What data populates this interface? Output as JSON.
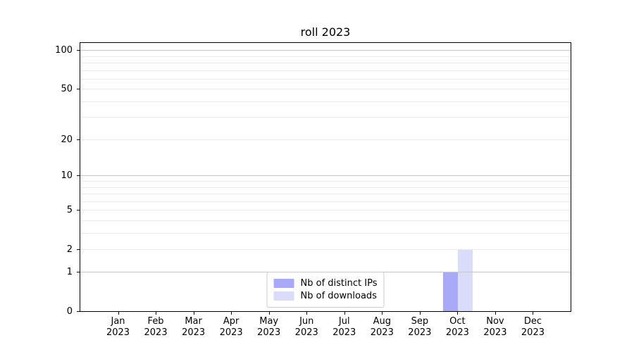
{
  "chart_data": {
    "type": "bar",
    "title": "roll 2023",
    "categories": [
      "Jan 2023",
      "Feb 2023",
      "Mar 2023",
      "Apr 2023",
      "May 2023",
      "Jun 2023",
      "Jul 2023",
      "Aug 2023",
      "Sep 2023",
      "Oct 2023",
      "Nov 2023",
      "Dec 2023"
    ],
    "month_labels": [
      "Jan",
      "Feb",
      "Mar",
      "Apr",
      "May",
      "Jun",
      "Jul",
      "Aug",
      "Sep",
      "Oct",
      "Nov",
      "Dec"
    ],
    "year": "2023",
    "series": [
      {
        "name": "Nb of distinct IPs",
        "color": "#a9a9f7",
        "values": [
          0,
          0,
          0,
          0,
          0,
          0,
          0,
          0,
          0,
          1,
          0,
          0
        ]
      },
      {
        "name": "Nb of downloads",
        "color": "#dbdbfa",
        "values": [
          0,
          0,
          0,
          0,
          0,
          0,
          0,
          0,
          0,
          2,
          0,
          0
        ]
      }
    ],
    "xlabel": "",
    "ylabel": "",
    "y_scale": "log1p",
    "ylim": [
      0,
      114
    ],
    "y_ticks": [
      0,
      1,
      2,
      5,
      10,
      20,
      50,
      100
    ],
    "y_major_gridlines": [
      1,
      10,
      100
    ],
    "y_minor_gridlines": [
      2,
      3,
      4,
      5,
      6,
      7,
      8,
      9,
      20,
      30,
      40,
      50,
      60,
      70,
      80,
      90
    ],
    "grid": "on",
    "legend_position": "lower center",
    "colors": {
      "spine": "#000000",
      "major_grid": "#c6c6c6",
      "minor_grid": "#ebebeb",
      "background": "#ffffff"
    }
  }
}
